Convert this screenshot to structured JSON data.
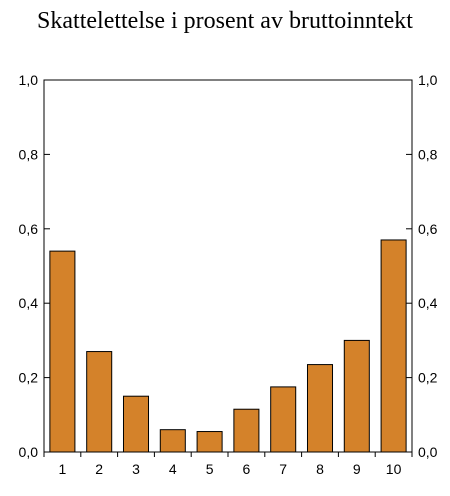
{
  "chart_data": {
    "type": "bar",
    "title": "Skattelettelse i prosent av bruttoinntekt",
    "categories": [
      "1",
      "2",
      "3",
      "4",
      "5",
      "6",
      "7",
      "8",
      "9",
      "10"
    ],
    "values": [
      0.54,
      0.27,
      0.15,
      0.06,
      0.055,
      0.115,
      0.175,
      0.235,
      0.3,
      0.57
    ],
    "ylim": [
      0,
      1.0
    ],
    "yticks": [
      "0,0",
      "0,2",
      "0,4",
      "0,6",
      "0,8",
      "1,0"
    ],
    "ytick_values": [
      0,
      0.2,
      0.4,
      0.6,
      0.8,
      1.0
    ],
    "right_axis_mirrored": true,
    "grid": false,
    "bar_color": "#d4822a",
    "bar_edge_color": "#000000"
  }
}
